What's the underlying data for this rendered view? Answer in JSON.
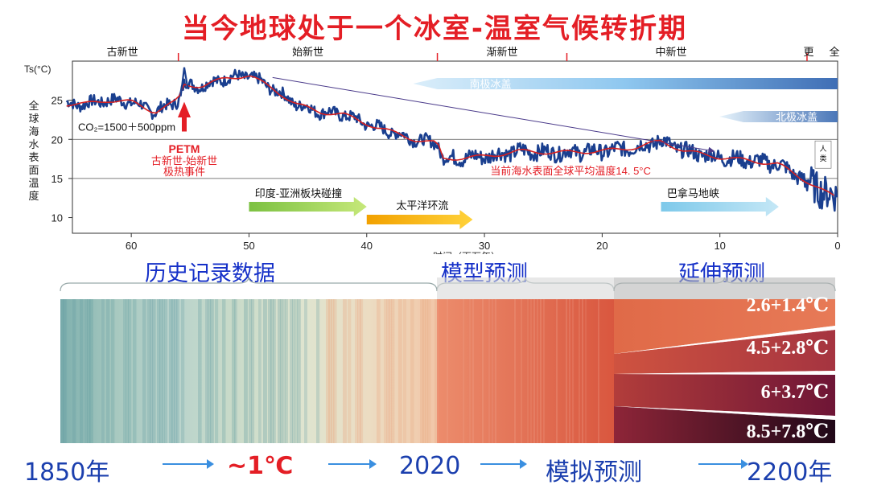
{
  "title": "当今地球处于一个冰室-温室气候转折期",
  "chart_data": [
    {
      "type": "line",
      "ylabel_symbol": "Ts(°C)",
      "ylabel": "全球海水表面温度",
      "xlabel": "时间（百万年）",
      "xlim": [
        65,
        0
      ],
      "ylim": [
        8,
        30
      ],
      "xticks": [
        60,
        50,
        40,
        30,
        20,
        10,
        0
      ],
      "yticks": [
        10,
        15,
        20,
        25
      ],
      "epochs": [
        {
          "name": "古新世",
          "start": 66,
          "end": 56
        },
        {
          "name": "始新世",
          "start": 56,
          "end": 34
        },
        {
          "name": "渐新世",
          "start": 34,
          "end": 23
        },
        {
          "name": "中新世",
          "start": 23,
          "end": 5.3
        },
        {
          "name": "更",
          "start": 2.6,
          "end": 0
        },
        {
          "name": "全",
          "start": 0,
          "end": 0
        }
      ],
      "x": [
        66,
        64,
        62,
        60,
        58,
        56,
        55.5,
        54,
        52,
        50,
        48,
        46,
        44,
        42,
        40,
        38,
        36,
        34,
        33.5,
        30,
        27,
        24,
        20,
        17,
        15,
        13,
        10,
        7,
        5,
        3,
        1,
        0
      ],
      "y": [
        24.5,
        24.5,
        25.0,
        24.8,
        23.5,
        25.0,
        27.0,
        26.8,
        27.8,
        28.2,
        26.5,
        24.5,
        23.5,
        23.2,
        22.0,
        21.0,
        20.0,
        19.5,
        17.5,
        17.8,
        18.5,
        18.3,
        18.5,
        19.0,
        19.8,
        18.5,
        17.7,
        17.2,
        16.8,
        15.0,
        13.2,
        12.5
      ],
      "reference_temperature": 14.5,
      "annotations": {
        "co2": "CO₂=1500＋500ppm",
        "petm": "PETM",
        "petm_desc1": "古新世-始新世",
        "petm_desc2": "极热事件",
        "current_temp": "当前海水表面全球平均温度14. 5°C",
        "human": "人类"
      },
      "bars": [
        {
          "label": "南极冰盖",
          "start": 34,
          "end": 0
        },
        {
          "label": "北极冰盖",
          "start": 8,
          "end": 0
        }
      ],
      "events": [
        {
          "label": "印度-亚洲板块碰撞",
          "start": 50,
          "end": 40
        },
        {
          "label": "太平洋环流",
          "start": 40,
          "end": 31
        },
        {
          "label": "巴拿马地峡",
          "start": 15,
          "end": 5
        }
      ]
    },
    {
      "type": "heatmap",
      "sections": [
        "历史记录数据",
        "模型预测",
        "延伸预测"
      ],
      "scenarios": [
        "2.6+1.4℃",
        "4.5+2.8℃",
        "6+3.7℃",
        "8.5+7.8℃"
      ]
    }
  ],
  "timeline": {
    "start": "1850年",
    "warming": "~1℃",
    "now": "2020",
    "model": "模拟预测",
    "end": "2200年"
  },
  "colors": {
    "title": "#e41e25",
    "curve": "#1a3f8f",
    "mean": "#d62020",
    "section_text": "#1530c8",
    "timeline_text": "#1b3fae"
  }
}
